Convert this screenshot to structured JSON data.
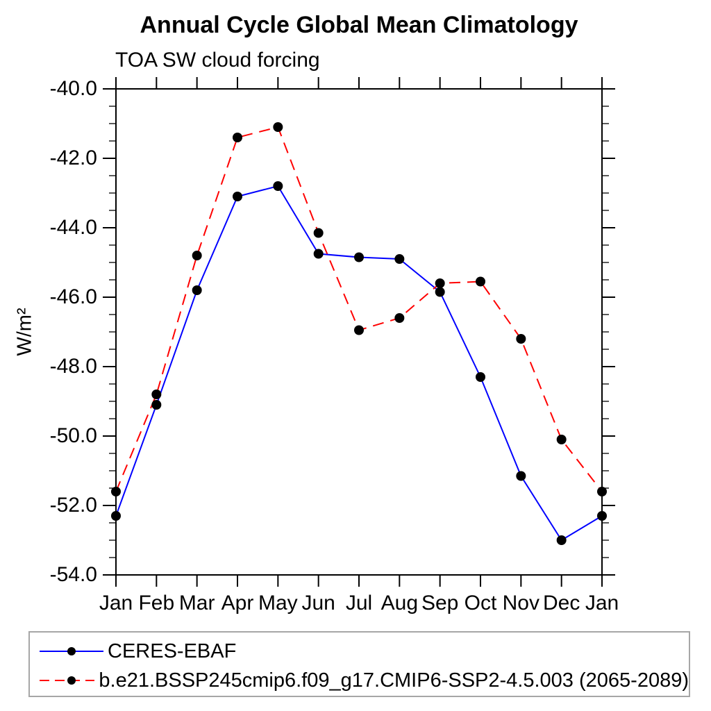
{
  "chart_data": {
    "type": "line",
    "title": "Annual Cycle Global Mean Climatology",
    "subtitle": "TOA SW cloud forcing",
    "ylabel": "W/m²",
    "categories": [
      "Jan",
      "Feb",
      "Mar",
      "Apr",
      "May",
      "Jun",
      "Jul",
      "Aug",
      "Sep",
      "Oct",
      "Nov",
      "Dec",
      "Jan"
    ],
    "ylim": [
      -54.0,
      -40.0
    ],
    "ytick_labels": [
      "-40.0",
      "-42.0",
      "-44.0",
      "-46.0",
      "-48.0",
      "-50.0",
      "-52.0",
      "-54.0"
    ],
    "ytick_major_interval": 2.0,
    "ytick_minor_interval": 0.5,
    "grid": false,
    "legend_position": "bottom-left",
    "axis_color": "#000000",
    "marker": {
      "shape": "circle",
      "color": "#000000"
    },
    "legend_border_color": "#a6a6a6",
    "series": [
      {
        "name": "CERES-EBAF",
        "color": "#0000ff",
        "line_style": "solid",
        "values": [
          -52.3,
          -49.1,
          -45.8,
          -43.1,
          -42.8,
          -44.75,
          -44.85,
          -44.9,
          -45.85,
          -48.3,
          -51.15,
          -53.0,
          -52.3
        ]
      },
      {
        "name": "b.e21.BSSP245cmip6.f09_g17.CMIP6-SSP2-4.5.003 (2065-2089)",
        "color": "#ff0000",
        "line_style": "dashed",
        "values": [
          -51.6,
          -48.8,
          -44.8,
          -41.4,
          -41.1,
          -44.15,
          -46.95,
          -46.6,
          -45.6,
          -45.55,
          -47.2,
          -50.1,
          -51.6
        ]
      }
    ]
  }
}
